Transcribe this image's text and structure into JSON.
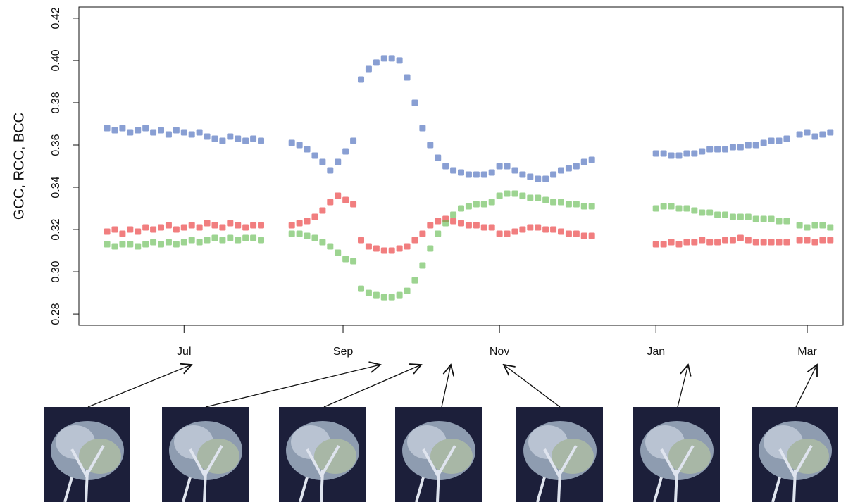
{
  "chart_data": {
    "type": "scatter",
    "y_label": "GCC, RCC, BCC",
    "xlim": [
      -41,
      257
    ],
    "xticks": [
      {
        "value": 0,
        "label": "Jul"
      },
      {
        "value": 62,
        "label": "Sep"
      },
      {
        "value": 123,
        "label": "Nov"
      },
      {
        "value": 184,
        "label": "Jan"
      },
      {
        "value": 243,
        "label": "Mar"
      }
    ],
    "ylim": [
      0.2747,
      0.4253
    ],
    "yticks": [
      0.28,
      {
        "value": 0.3,
        "label": "0.30"
      },
      0.32,
      0.34,
      0.36,
      0.38,
      {
        "value": 0.4,
        "label": "0.40"
      },
      0.42
    ],
    "x": [
      -30,
      -27,
      -24,
      -21,
      -18,
      -15,
      -12,
      -9,
      -6,
      -3,
      0,
      3,
      6,
      9,
      12,
      15,
      18,
      21,
      24,
      27,
      30,
      42,
      45,
      48,
      51,
      54,
      57,
      60,
      63,
      66,
      69,
      72,
      75,
      78,
      81,
      84,
      87,
      90,
      93,
      96,
      99,
      102,
      105,
      108,
      111,
      114,
      117,
      120,
      123,
      126,
      129,
      132,
      135,
      138,
      141,
      144,
      147,
      150,
      153,
      156,
      159,
      184,
      187,
      190,
      193,
      196,
      199,
      202,
      205,
      208,
      211,
      214,
      217,
      220,
      223,
      226,
      229,
      232,
      235,
      240,
      243,
      246,
      249,
      252
    ],
    "series": [
      {
        "color": "#3a5fb5",
        "values": [
          0.368,
          0.367,
          0.368,
          0.366,
          0.367,
          0.368,
          0.366,
          0.367,
          0.365,
          0.367,
          0.366,
          0.365,
          0.366,
          0.364,
          0.363,
          0.362,
          0.364,
          0.363,
          0.362,
          0.363,
          0.362,
          0.361,
          0.36,
          0.358,
          0.355,
          0.352,
          0.348,
          0.352,
          0.357,
          0.362,
          0.391,
          0.396,
          0.399,
          0.401,
          0.401,
          0.4,
          0.392,
          0.38,
          0.368,
          0.36,
          0.354,
          0.35,
          0.348,
          0.347,
          0.346,
          0.346,
          0.346,
          0.347,
          0.35,
          0.35,
          0.348,
          0.346,
          0.345,
          0.344,
          0.344,
          0.346,
          0.348,
          0.349,
          0.35,
          0.352,
          0.353,
          0.356,
          0.356,
          0.355,
          0.355,
          0.356,
          0.356,
          0.357,
          0.358,
          0.358,
          0.358,
          0.359,
          0.359,
          0.36,
          0.36,
          0.361,
          0.362,
          0.362,
          0.363,
          0.365,
          0.366,
          0.364,
          0.365,
          0.366
        ]
      },
      {
        "color": "#e8282a",
        "values": [
          0.319,
          0.32,
          0.318,
          0.32,
          0.319,
          0.321,
          0.32,
          0.321,
          0.322,
          0.32,
          0.321,
          0.322,
          0.321,
          0.323,
          0.322,
          0.321,
          0.323,
          0.322,
          0.321,
          0.322,
          0.322,
          0.322,
          0.323,
          0.324,
          0.326,
          0.329,
          0.333,
          0.336,
          0.334,
          0.332,
          0.315,
          0.312,
          0.311,
          0.31,
          0.31,
          0.311,
          0.312,
          0.315,
          0.318,
          0.322,
          0.324,
          0.325,
          0.324,
          0.323,
          0.322,
          0.322,
          0.321,
          0.321,
          0.318,
          0.318,
          0.319,
          0.32,
          0.321,
          0.321,
          0.32,
          0.32,
          0.319,
          0.318,
          0.318,
          0.317,
          0.317,
          0.313,
          0.313,
          0.314,
          0.313,
          0.314,
          0.314,
          0.315,
          0.314,
          0.314,
          0.315,
          0.315,
          0.316,
          0.315,
          0.314,
          0.314,
          0.314,
          0.314,
          0.314,
          0.315,
          0.315,
          0.314,
          0.315,
          0.315
        ]
      },
      {
        "color": "#5cb848",
        "values": [
          0.313,
          0.312,
          0.313,
          0.313,
          0.312,
          0.313,
          0.314,
          0.313,
          0.314,
          0.313,
          0.314,
          0.315,
          0.314,
          0.315,
          0.316,
          0.315,
          0.316,
          0.315,
          0.316,
          0.316,
          0.315,
          0.318,
          0.318,
          0.317,
          0.316,
          0.314,
          0.312,
          0.309,
          0.306,
          0.305,
          0.292,
          0.29,
          0.289,
          0.288,
          0.288,
          0.289,
          0.291,
          0.296,
          0.303,
          0.311,
          0.318,
          0.323,
          0.327,
          0.33,
          0.331,
          0.332,
          0.332,
          0.333,
          0.336,
          0.337,
          0.337,
          0.336,
          0.335,
          0.335,
          0.334,
          0.333,
          0.333,
          0.332,
          0.332,
          0.331,
          0.331,
          0.33,
          0.331,
          0.331,
          0.33,
          0.33,
          0.329,
          0.328,
          0.328,
          0.327,
          0.327,
          0.326,
          0.326,
          0.326,
          0.325,
          0.325,
          0.325,
          0.324,
          0.324,
          0.322,
          0.321,
          0.322,
          0.322,
          0.321
        ]
      }
    ]
  }
}
